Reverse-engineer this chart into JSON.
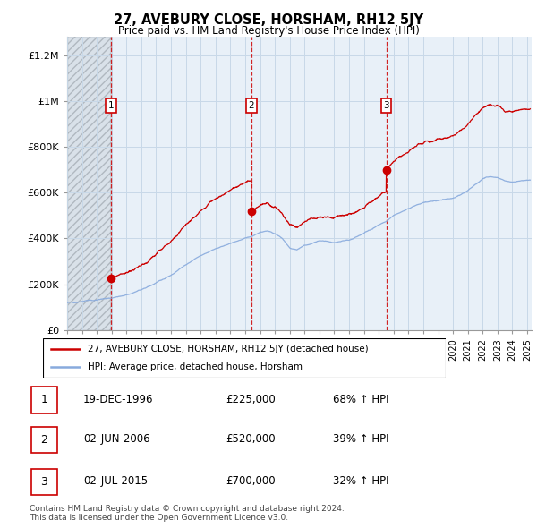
{
  "title": "27, AVEBURY CLOSE, HORSHAM, RH12 5JY",
  "subtitle": "Price paid vs. HM Land Registry's House Price Index (HPI)",
  "ylabel_ticks": [
    "£0",
    "£200K",
    "£400K",
    "£600K",
    "£800K",
    "£1M",
    "£1.2M"
  ],
  "ytick_values": [
    0,
    200000,
    400000,
    600000,
    800000,
    1000000,
    1200000
  ],
  "ylim": [
    0,
    1280000
  ],
  "xlim_start": 1994.0,
  "xlim_end": 2025.3,
  "sale_dates": [
    1996.97,
    2006.42,
    2015.5
  ],
  "sale_prices": [
    225000,
    520000,
    700000
  ],
  "sale_labels": [
    "1",
    "2",
    "3"
  ],
  "legend_line1": "27, AVEBURY CLOSE, HORSHAM, RH12 5JY (detached house)",
  "legend_line2": "HPI: Average price, detached house, Horsham",
  "table_rows": [
    [
      "1",
      "19-DEC-1996",
      "£225,000",
      "68% ↑ HPI"
    ],
    [
      "2",
      "02-JUN-2006",
      "£520,000",
      "39% ↑ HPI"
    ],
    [
      "3",
      "02-JUL-2015",
      "£700,000",
      "32% ↑ HPI"
    ]
  ],
  "footnote1": "Contains HM Land Registry data © Crown copyright and database right 2024.",
  "footnote2": "This data is licensed under the Open Government Licence v3.0.",
  "price_line_color": "#cc0000",
  "hpi_line_color": "#88aadd",
  "vline_color": "#cc0000",
  "grid_color": "#c8d8e8",
  "bg_color": "#e8f0f8"
}
